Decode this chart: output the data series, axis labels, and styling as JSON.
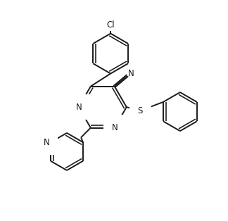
{
  "bg_color": "#ffffff",
  "line_color": "#1a1a1a",
  "line_width": 1.4,
  "font_size": 8.5,
  "figsize": [
    3.24,
    3.14
  ],
  "dpi": 100,
  "xlim": [
    0,
    10
  ],
  "ylim": [
    0,
    9.7
  ]
}
